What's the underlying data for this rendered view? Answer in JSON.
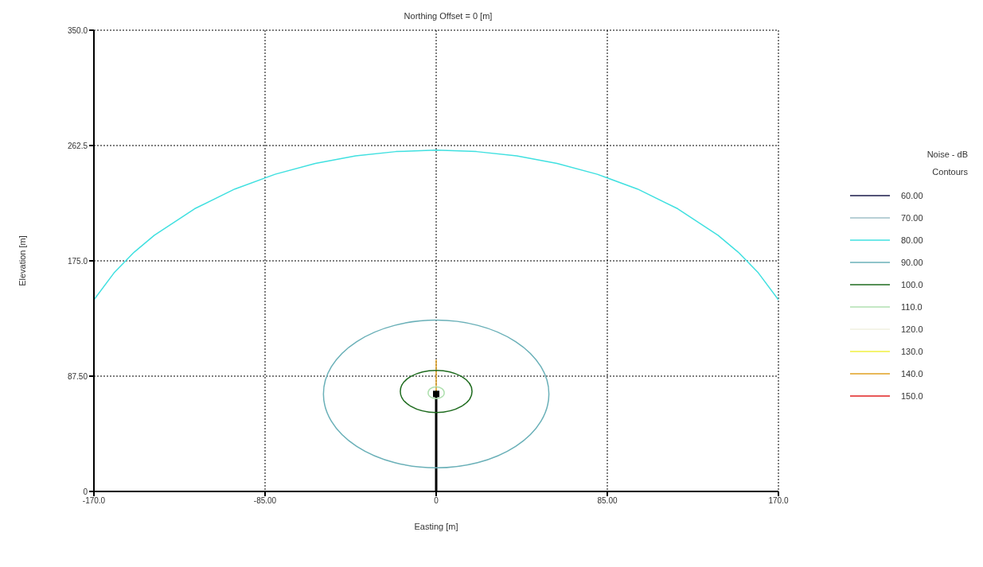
{
  "chart_data": {
    "type": "line",
    "title": "Northing Offset = 0 [m]",
    "xlabel": "Easting [m]",
    "ylabel": "Elevation [m]",
    "legend_title": "Noise - dB\nContours",
    "legend": "right",
    "grid": true,
    "line_style": "solid",
    "xlim": [
      -170,
      170
    ],
    "xticks": [
      {
        "value": -170,
        "label": "-170.0"
      },
      {
        "value": -85,
        "label": "-85.00"
      },
      0,
      {
        "value": 85,
        "label": "85.00"
      },
      {
        "value": 170,
        "label": "170.0"
      }
    ],
    "ylim": [
      0,
      350
    ],
    "yticks": [
      0,
      {
        "value": 87.5,
        "label": "87.50"
      },
      {
        "value": 175,
        "label": "175.0"
      },
      {
        "value": 262.5,
        "label": "262.5"
      },
      {
        "value": 350,
        "label": "350.0"
      }
    ],
    "series": [
      {
        "name": "60.00",
        "color": "#1a1a4a"
      },
      {
        "name": "70.00",
        "color": "#a0c0c8"
      },
      {
        "name": "80.00",
        "color": "#40e0e0",
        "x": [
          -170,
          -160,
          -150,
          -140,
          -120,
          -100,
          -80,
          -60,
          -40,
          -20,
          0,
          20,
          40,
          60,
          80,
          100,
          120,
          140,
          150,
          160,
          170
        ],
        "values": [
          145.4,
          165.9,
          181.6,
          194.4,
          214.5,
          229.5,
          240.7,
          248.9,
          254.6,
          257.9,
          259,
          257.9,
          254.6,
          248.9,
          240.7,
          229.5,
          214.5,
          194.4,
          181.6,
          165.9,
          145.4
        ]
      },
      {
        "name": "90.00",
        "color": "#6ab0b8"
      },
      {
        "name": "100.0",
        "color": "#1e6b1e"
      },
      {
        "name": "110.0",
        "color": "#b0e0b0"
      },
      {
        "name": "120.0",
        "color": "#f0f0e0"
      },
      {
        "name": "130.0",
        "color": "#f0f040"
      },
      {
        "name": "140.0",
        "color": "#e0a020",
        "x": [
          0,
          0
        ],
        "values": [
          76,
          100
        ]
      },
      {
        "name": "150.0",
        "color": "#e02020"
      },
      {
        "color": "#000000",
        "x": [
          0,
          0
        ],
        "values": [
          0,
          74
        ]
      },
      {
        "type": "scatter",
        "color": "#000000",
        "marker": "square",
        "x": [
          0
        ],
        "values": [
          74
        ]
      }
    ]
  }
}
